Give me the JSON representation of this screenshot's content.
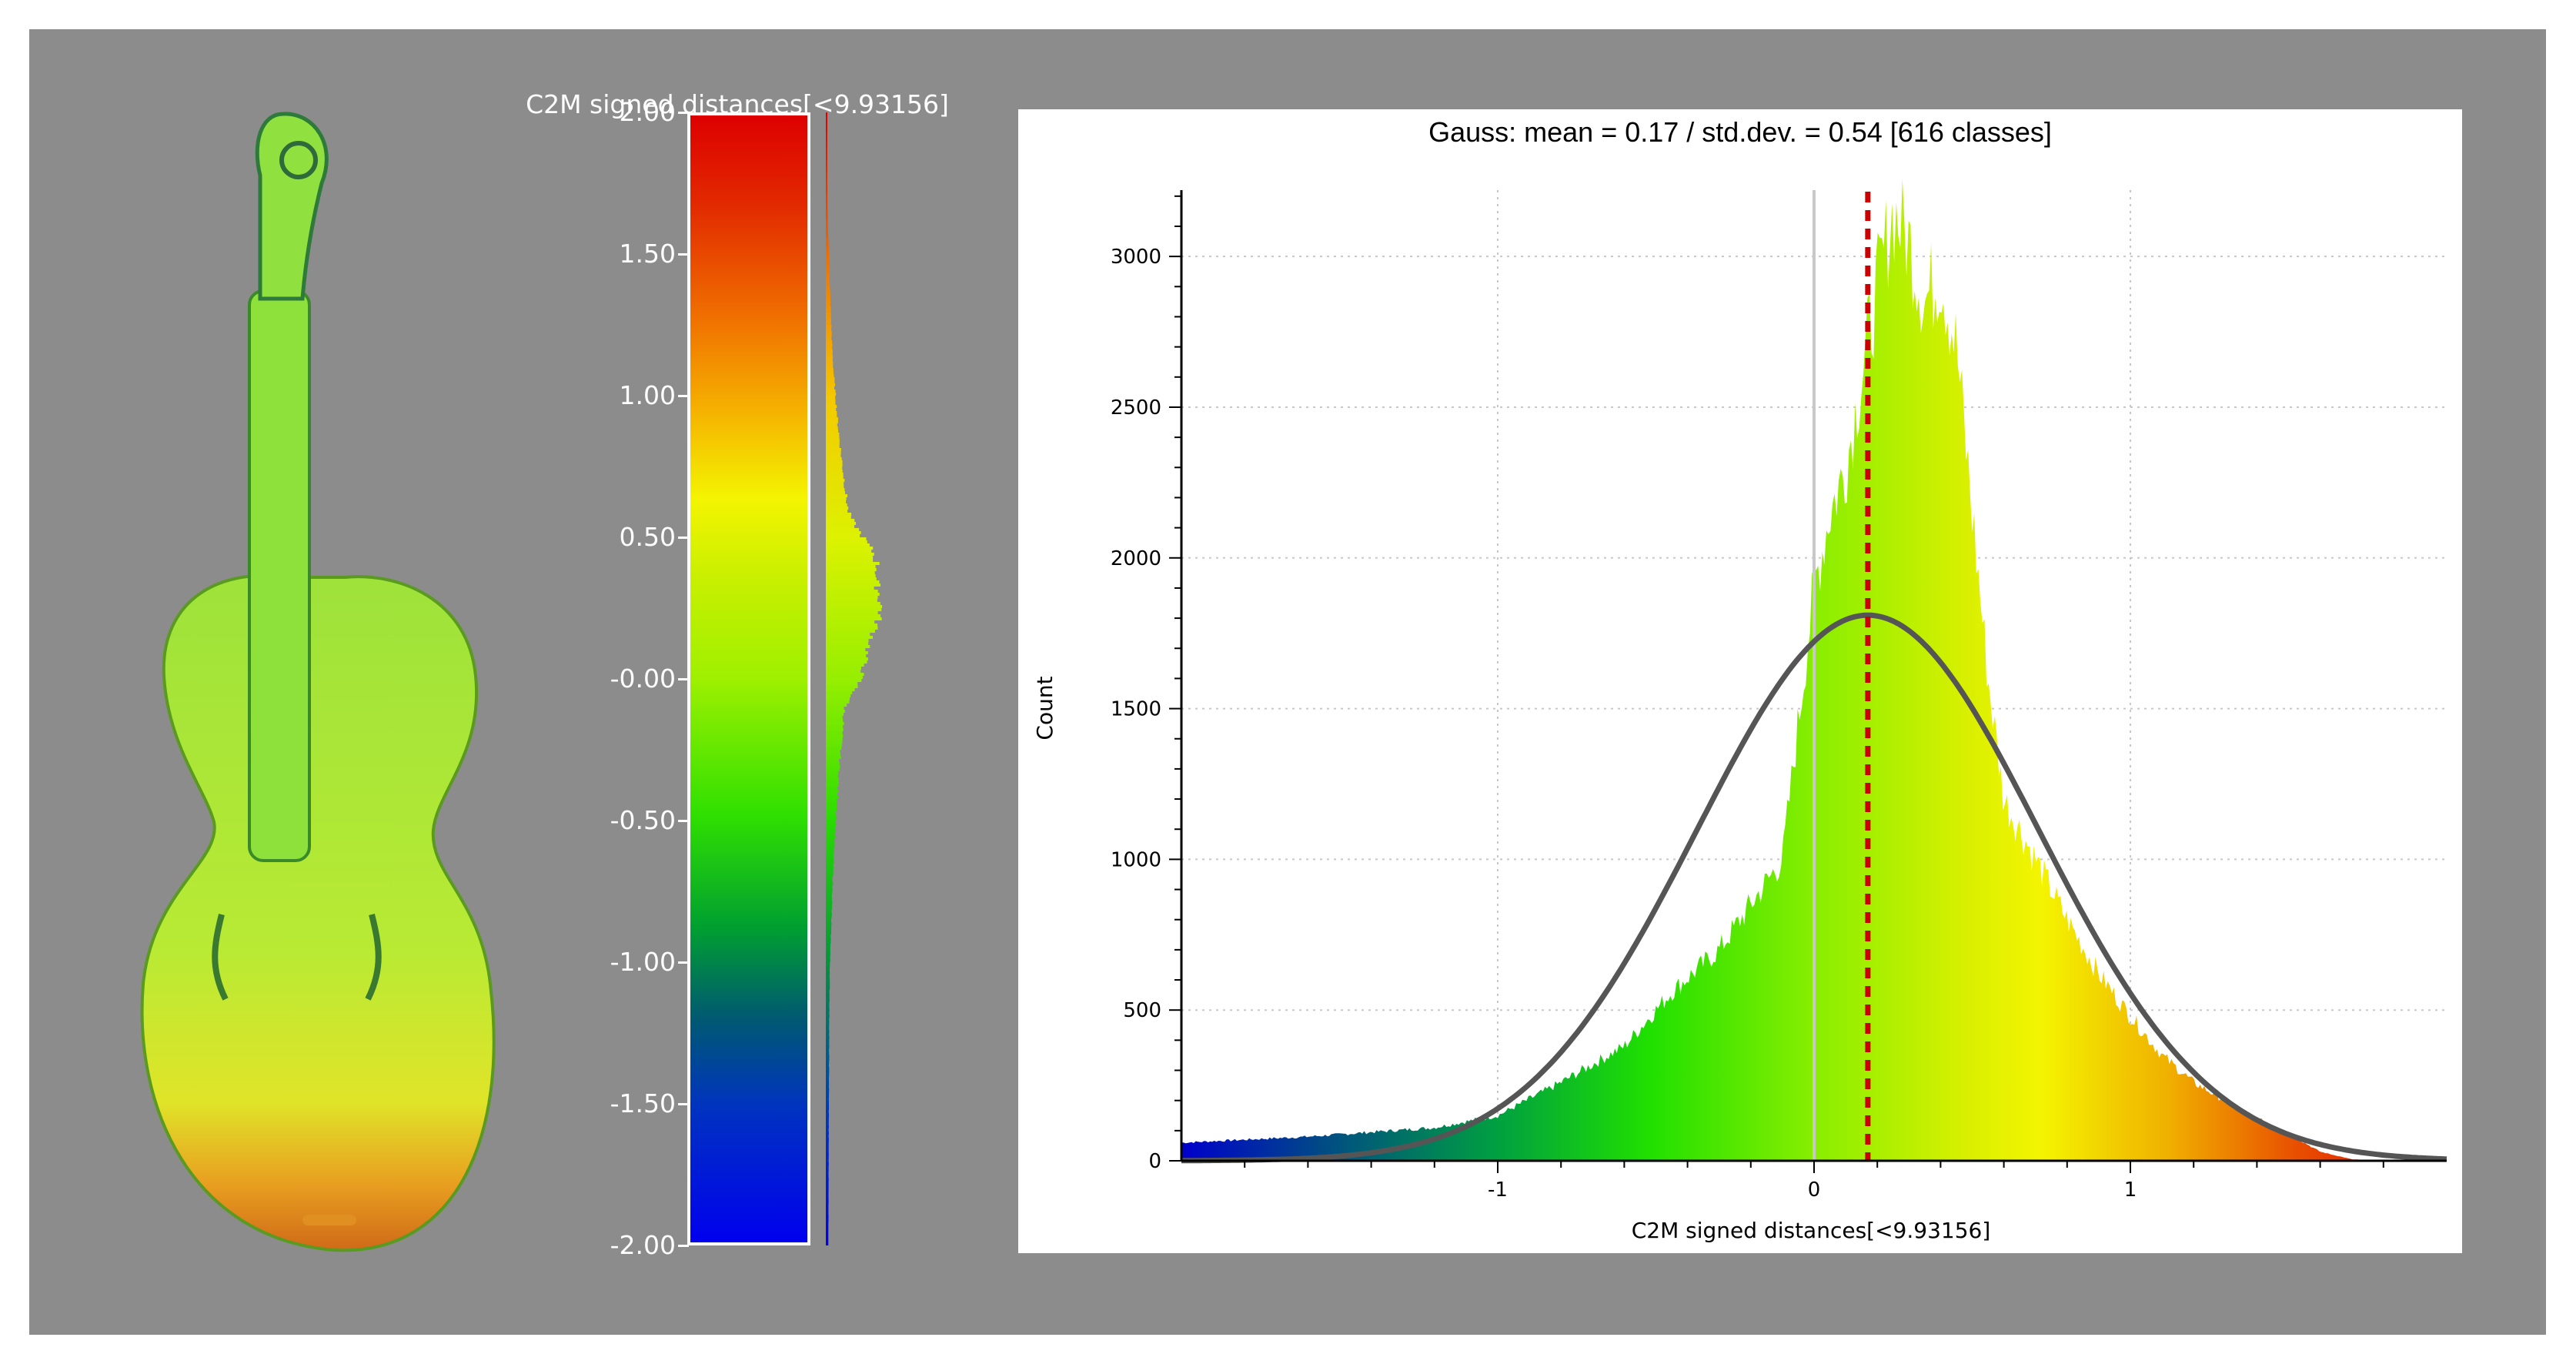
{
  "colors": {
    "frame_bg": "#8c8c8c",
    "fit_curve": "#555555",
    "mean_line": "#cc0000"
  },
  "scale": {
    "title": "C2M signed distances[<9.93156]",
    "ticks": [
      "2.00",
      "1.50",
      "1.00",
      "0.50",
      "-0.00",
      "-0.50",
      "-1.00",
      "-1.50",
      "-2.00"
    ],
    "range": [
      -2,
      2
    ]
  },
  "chart_data": {
    "type": "bar",
    "title": "Gauss: mean = 0.17 / std.dev. = 0.54 [616 classes]",
    "xlabel": "C2M signed distances[<9.93156]",
    "ylabel": "Count",
    "xlim": [
      -2,
      2
    ],
    "ylim": [
      0,
      3220
    ],
    "x_ticks": [
      -1,
      0,
      1
    ],
    "y_ticks": [
      0,
      500,
      1000,
      1500,
      2000,
      2500,
      3000
    ],
    "grid": true,
    "gauss": {
      "mean": 0.17,
      "std": 0.54,
      "peak": 1810
    },
    "histogram_profile": {
      "x": [
        -2.0,
        -1.6,
        -1.2,
        -1.0,
        -0.8,
        -0.6,
        -0.45,
        -0.3,
        -0.2,
        -0.1,
        -0.05,
        0.0,
        0.05,
        0.1,
        0.15,
        0.2,
        0.25,
        0.3,
        0.35,
        0.4,
        0.45,
        0.5,
        0.55,
        0.6,
        0.7,
        0.8,
        0.9,
        1.0,
        1.1,
        1.2,
        1.3,
        1.4,
        1.5,
        1.6,
        1.7,
        1.8,
        2.0
      ],
      "counts": [
        60,
        80,
        110,
        150,
        260,
        380,
        560,
        700,
        850,
        1000,
        1450,
        1900,
        2150,
        2300,
        2600,
        2900,
        3150,
        3050,
        2850,
        2950,
        2700,
        2150,
        1600,
        1200,
        1000,
        800,
        620,
        480,
        350,
        260,
        200,
        140,
        90,
        30,
        5,
        0,
        0
      ]
    }
  }
}
